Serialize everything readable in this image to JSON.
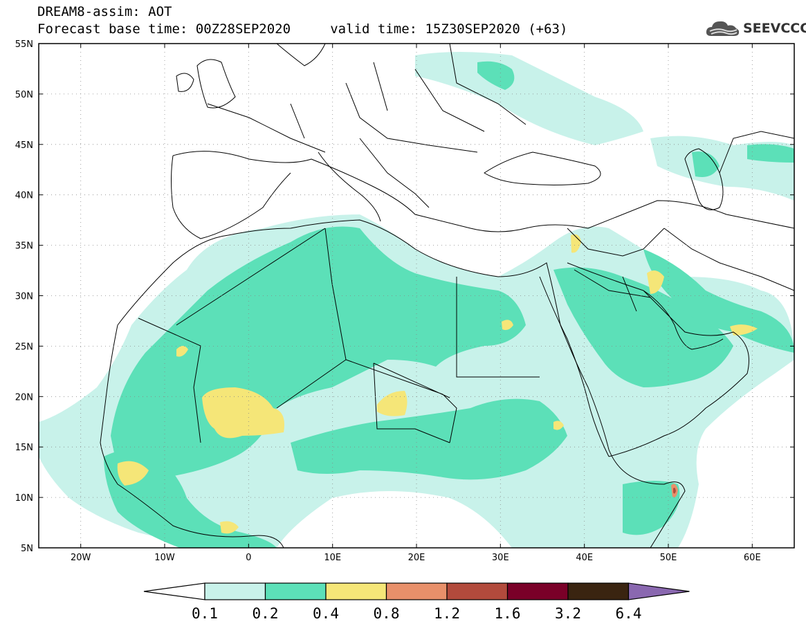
{
  "header": {
    "title": "DREAM8-assim: AOT",
    "subtitle": "Forecast base time: 00Z28SEP2020     valid time: 15Z30SEP2020 (+63)"
  },
  "logo": {
    "text": "SEEVCCC",
    "icon": "cloud-icon"
  },
  "map": {
    "lon_range": [
      -25,
      65
    ],
    "lat_range": [
      5,
      55
    ],
    "lon_ticks": [
      "20W",
      "10W",
      "0",
      "10E",
      "20E",
      "30E",
      "40E",
      "50E",
      "60E"
    ],
    "lat_ticks": [
      "55N",
      "50N",
      "45N",
      "40N",
      "35N",
      "30N",
      "25N",
      "20N",
      "15N",
      "10N",
      "5N"
    ],
    "grid": "dotted"
  },
  "colorbar": {
    "labels": [
      "0.1",
      "0.2",
      "0.4",
      "0.8",
      "1.2",
      "1.6",
      "3.2",
      "6.4"
    ],
    "colors": [
      "#ffffff",
      "#c8f2ea",
      "#5ce0b8",
      "#f5e678",
      "#e8906a",
      "#b24a3c",
      "#7a0028",
      "#3a2410",
      "#8a68b0"
    ]
  }
}
